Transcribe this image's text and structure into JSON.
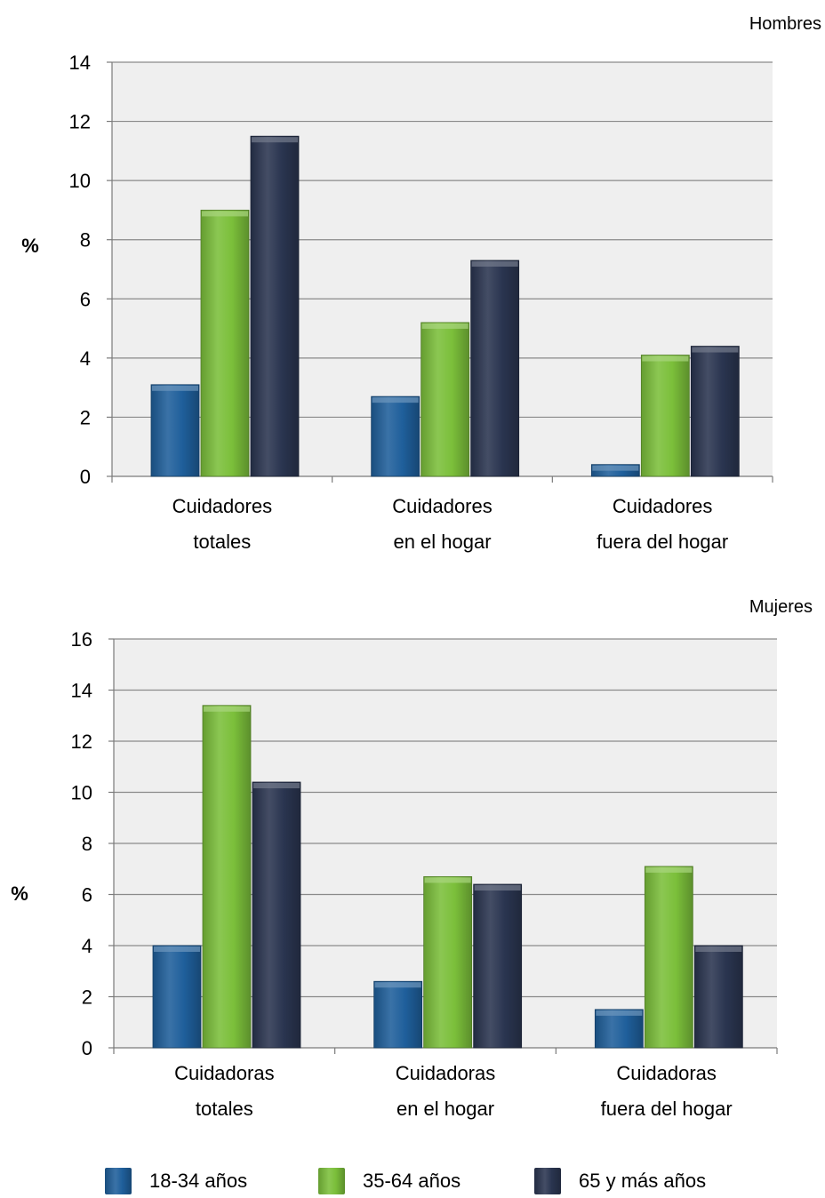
{
  "chart_data": [
    {
      "type": "bar",
      "title": "Hombres",
      "ylabel": "%",
      "ylim": [
        0,
        14
      ],
      "yticks": [
        0,
        2,
        4,
        6,
        8,
        10,
        12,
        14
      ],
      "grid": true,
      "categories": [
        [
          "Cuidadores",
          "totales"
        ],
        [
          "Cuidadores",
          "en el hogar"
        ],
        [
          "Cuidadores",
          "fuera del hogar"
        ]
      ],
      "series": [
        {
          "name": "18-34  años",
          "values": [
            3.1,
            2.7,
            0.4
          ]
        },
        {
          "name": "35-64  años",
          "values": [
            9.0,
            5.2,
            4.1
          ]
        },
        {
          "name": "65  y más años",
          "values": [
            11.5,
            7.3,
            4.4
          ]
        }
      ]
    },
    {
      "type": "bar",
      "title": "Mujeres",
      "ylabel": "%",
      "ylim": [
        0,
        16
      ],
      "yticks": [
        0,
        2,
        4,
        6,
        8,
        10,
        12,
        14,
        16
      ],
      "grid": true,
      "categories": [
        [
          "Cuidadoras",
          "totales"
        ],
        [
          "Cuidadoras",
          "en el hogar"
        ],
        [
          "Cuidadoras",
          "fuera del hogar"
        ]
      ],
      "series": [
        {
          "name": "18-34  años",
          "values": [
            4.0,
            2.6,
            1.5
          ]
        },
        {
          "name": "35-64  años",
          "values": [
            13.4,
            6.7,
            7.1
          ]
        },
        {
          "name": "65  y más años",
          "values": [
            10.4,
            6.4,
            4.0
          ]
        }
      ]
    }
  ],
  "legend": {
    "placement": "bottom",
    "items": [
      {
        "label": "18-34  años",
        "color": "#1f5f9b"
      },
      {
        "label": "35-64  años",
        "color": "#7bbf3a"
      },
      {
        "label": "65  y más años",
        "color": "#2a3550"
      }
    ]
  },
  "colors": {
    "plot_background": "#efefef",
    "grid": "#8a8a8a",
    "series": [
      "#1f5f9b",
      "#7bbf3a",
      "#2a3550"
    ]
  }
}
